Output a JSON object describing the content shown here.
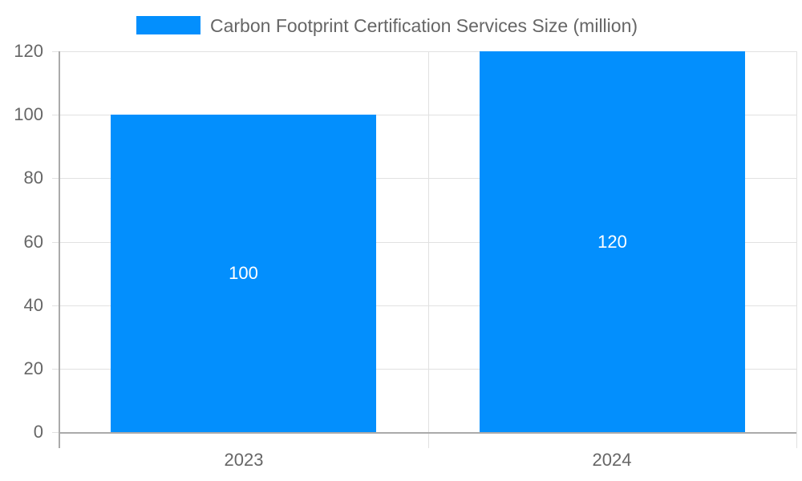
{
  "chart_data": {
    "type": "bar",
    "title": "",
    "categories": [
      "2023",
      "2024"
    ],
    "series": [
      {
        "name": "Carbon Footprint Certification Services Size (million)",
        "values": [
          100,
          120
        ],
        "color": "#038ffd"
      }
    ],
    "xlabel": "",
    "ylabel": "",
    "ylim": [
      0,
      120
    ],
    "yticks": [
      0,
      20,
      40,
      60,
      80,
      100,
      120
    ],
    "grid": true,
    "legend_position": "top",
    "data_labels": [
      "100",
      "120"
    ]
  },
  "legend": {
    "label": "Carbon Footprint Certification Services Size (million)",
    "color": "#038ffd"
  },
  "colors": {
    "bar": "#038ffd",
    "grid": "#e1e1e1",
    "axis": "#aaaaaa",
    "text": "#666666",
    "label": "#ffffff"
  }
}
